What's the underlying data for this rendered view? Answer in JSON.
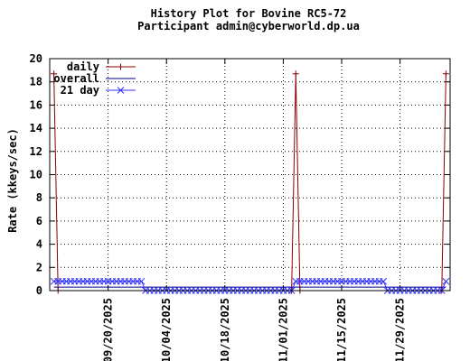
{
  "chart_data": {
    "type": "line",
    "title": "History Plot for Bovine RC5-72",
    "subtitle": "Participant admin@cyberworld.dp.ua",
    "y_label": "Rate (kkeys/sec)",
    "xlim": [
      "2025-09-06",
      "2025-12-11"
    ],
    "ylim": [
      0,
      20
    ],
    "yticks": [
      0,
      2,
      4,
      6,
      8,
      10,
      12,
      14,
      16,
      18,
      20
    ],
    "xticks": [
      {
        "value": "2025-09-20",
        "label": "09/20/2025"
      },
      {
        "value": "2025-10-04",
        "label": "10/04/2025"
      },
      {
        "value": "2025-10-18",
        "label": "10/18/2025"
      },
      {
        "value": "2025-11-01",
        "label": "11/01/2025"
      },
      {
        "value": "2025-11-15",
        "label": "11/15/2025"
      },
      {
        "value": "2025-11-29",
        "label": "11/29/2025"
      }
    ],
    "grid": true,
    "legend": "top-left",
    "series": [
      {
        "name": "daily",
        "color": "#8b0000",
        "marker": "plus",
        "x": [
          "2025-09-07",
          "2025-09-08",
          "2025-11-03",
          "2025-11-04",
          "2025-11-05",
          "2025-12-09",
          "2025-12-10"
        ],
        "values": [
          18.7,
          0,
          0,
          18.7,
          0,
          0,
          18.7
        ]
      },
      {
        "name": "overall",
        "color": "#000080",
        "marker": "none",
        "x": [
          "2025-09-07",
          "2025-12-10"
        ],
        "values": [
          0.3,
          0.3
        ]
      },
      {
        "name": "21 day",
        "color": "#3333ff",
        "marker": "cross",
        "x": [
          "2025-09-07",
          "2025-09-08",
          "2025-09-09",
          "2025-09-10",
          "2025-09-11",
          "2025-09-12",
          "2025-09-13",
          "2025-09-14",
          "2025-09-15",
          "2025-09-16",
          "2025-09-17",
          "2025-09-18",
          "2025-09-19",
          "2025-09-20",
          "2025-09-21",
          "2025-09-22",
          "2025-09-23",
          "2025-09-24",
          "2025-09-25",
          "2025-09-26",
          "2025-09-27",
          "2025-09-28",
          "2025-09-29",
          "2025-09-30",
          "2025-10-01",
          "2025-10-02",
          "2025-10-03",
          "2025-10-04",
          "2025-10-05",
          "2025-10-06",
          "2025-10-07",
          "2025-10-08",
          "2025-10-09",
          "2025-10-10",
          "2025-10-11",
          "2025-10-12",
          "2025-10-13",
          "2025-10-14",
          "2025-10-15",
          "2025-10-16",
          "2025-10-17",
          "2025-10-18",
          "2025-10-19",
          "2025-10-20",
          "2025-10-21",
          "2025-10-22",
          "2025-10-23",
          "2025-10-24",
          "2025-10-25",
          "2025-10-26",
          "2025-10-27",
          "2025-10-28",
          "2025-10-29",
          "2025-10-30",
          "2025-10-31",
          "2025-11-01",
          "2025-11-02",
          "2025-11-03",
          "2025-11-04",
          "2025-11-05",
          "2025-11-06",
          "2025-11-07",
          "2025-11-08",
          "2025-11-09",
          "2025-11-10",
          "2025-11-11",
          "2025-11-12",
          "2025-11-13",
          "2025-11-14",
          "2025-11-15",
          "2025-11-16",
          "2025-11-17",
          "2025-11-18",
          "2025-11-19",
          "2025-11-20",
          "2025-11-21",
          "2025-11-22",
          "2025-11-23",
          "2025-11-24",
          "2025-11-25",
          "2025-11-26",
          "2025-11-27",
          "2025-11-28",
          "2025-11-29",
          "2025-11-30",
          "2025-12-01",
          "2025-12-02",
          "2025-12-03",
          "2025-12-04",
          "2025-12-05",
          "2025-12-06",
          "2025-12-07",
          "2025-12-08",
          "2025-12-09",
          "2025-12-10"
        ],
        "values": [
          0.8,
          0.8,
          0.8,
          0.8,
          0.8,
          0.8,
          0.8,
          0.8,
          0.8,
          0.8,
          0.8,
          0.8,
          0.8,
          0.8,
          0.8,
          0.8,
          0.8,
          0.8,
          0.8,
          0.8,
          0.8,
          0.8,
          0,
          0,
          0,
          0,
          0,
          0,
          0,
          0,
          0,
          0,
          0,
          0,
          0,
          0,
          0,
          0,
          0,
          0,
          0,
          0,
          0,
          0,
          0,
          0,
          0,
          0,
          0,
          0,
          0,
          0,
          0,
          0,
          0,
          0,
          0,
          0,
          0.8,
          0.8,
          0.8,
          0.8,
          0.8,
          0.8,
          0.8,
          0.8,
          0.8,
          0.8,
          0.8,
          0.8,
          0.8,
          0.8,
          0.8,
          0.8,
          0.8,
          0.8,
          0.8,
          0.8,
          0.8,
          0.8,
          0,
          0,
          0,
          0,
          0,
          0,
          0,
          0,
          0,
          0,
          0,
          0,
          0,
          0,
          0.8
        ]
      }
    ]
  }
}
